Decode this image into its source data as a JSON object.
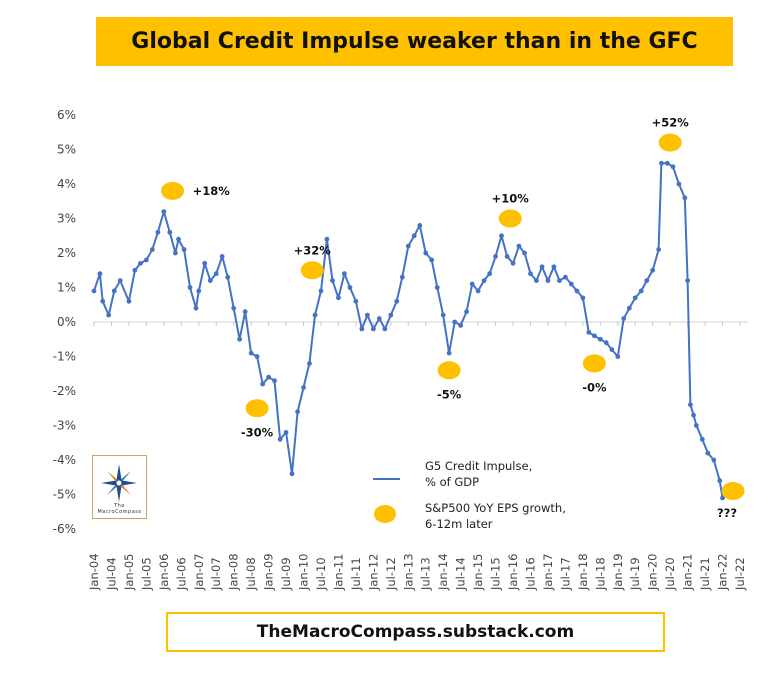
{
  "title": "Global Credit Impulse weaker than in the GFC",
  "footer": "TheMacroCompass.substack.com",
  "logo_text": "The MacroCompass",
  "colors": {
    "banner": "#ffc000",
    "line": "#4472c4",
    "marker": "#ffc000",
    "question": "#ff0000"
  },
  "chart_data": {
    "type": "line",
    "title": "Global Credit Impulse weaker than in the GFC",
    "xlabel": "",
    "ylabel": "",
    "ylim": [
      -6,
      6
    ],
    "xlim": [
      "2004-01",
      "2022-07"
    ],
    "y_ticks": [
      "6%",
      "5%",
      "4%",
      "3%",
      "2%",
      "1%",
      "0%",
      "-1%",
      "-2%",
      "-3%",
      "-4%",
      "-5%",
      "-6%"
    ],
    "y_tick_values": [
      6,
      5,
      4,
      3,
      2,
      1,
      0,
      -1,
      -2,
      -3,
      -4,
      -5,
      -6
    ],
    "x_ticks": [
      "Jan-04",
      "Jul-04",
      "Jan-05",
      "Jul-05",
      "Jan-06",
      "Jul-06",
      "Jan-07",
      "Jul-07",
      "Jan-08",
      "Jul-08",
      "Jan-09",
      "Jul-09",
      "Jan-10",
      "Jul-10",
      "Jan-11",
      "Jul-11",
      "Jan-12",
      "Jul-12",
      "Jan-13",
      "Jul-13",
      "Jan-14",
      "Jul-14",
      "Jan-15",
      "Jul-15",
      "Jan-16",
      "Jul-16",
      "Jan-17",
      "Jul-17",
      "Jan-18",
      "Jul-18",
      "Jan-19",
      "Jul-19",
      "Jan-20",
      "Jul-20",
      "Jan-21",
      "Jul-21",
      "Jan-22",
      "Jul-22"
    ],
    "grid": false,
    "legend_position": "bottom-right",
    "series": [
      {
        "name": "G5 Credit Impulse, % of GDP",
        "style": "line",
        "x": [
          2004.0,
          2004.17,
          2004.25,
          2004.42,
          2004.58,
          2004.75,
          2005.0,
          2005.17,
          2005.33,
          2005.5,
          2005.67,
          2005.83,
          2006.0,
          2006.17,
          2006.33,
          2006.42,
          2006.58,
          2006.75,
          2006.92,
          2007.0,
          2007.17,
          2007.33,
          2007.5,
          2007.67,
          2007.83,
          2008.0,
          2008.17,
          2008.33,
          2008.5,
          2008.67,
          2008.83,
          2009.0,
          2009.17,
          2009.33,
          2009.5,
          2009.67,
          2009.83,
          2010.0,
          2010.17,
          2010.33,
          2010.5,
          2010.67,
          2010.83,
          2011.0,
          2011.17,
          2011.33,
          2011.5,
          2011.67,
          2011.83,
          2012.0,
          2012.17,
          2012.33,
          2012.5,
          2012.67,
          2012.83,
          2013.0,
          2013.17,
          2013.33,
          2013.5,
          2013.67,
          2013.83,
          2014.0,
          2014.17,
          2014.33,
          2014.5,
          2014.67,
          2014.83,
          2015.0,
          2015.17,
          2015.33,
          2015.5,
          2015.67,
          2015.83,
          2016.0,
          2016.17,
          2016.33,
          2016.5,
          2016.67,
          2016.83,
          2017.0,
          2017.17,
          2017.33,
          2017.5,
          2017.67,
          2017.83,
          2018.0,
          2018.17,
          2018.33,
          2018.5,
          2018.67,
          2018.83,
          2019.0,
          2019.17,
          2019.33,
          2019.5,
          2019.67,
          2019.83,
          2020.0,
          2020.17,
          2020.25,
          2020.42,
          2020.58,
          2020.75,
          2020.92,
          2021.0,
          2021.08,
          2021.17,
          2021.25,
          2021.42,
          2021.58,
          2021.75,
          2021.92,
          2022.0
        ],
        "y": [
          0.9,
          1.4,
          0.6,
          0.2,
          0.9,
          1.2,
          0.6,
          1.5,
          1.7,
          1.8,
          2.1,
          2.6,
          3.2,
          2.6,
          2.0,
          2.4,
          2.1,
          1.0,
          0.4,
          0.9,
          1.7,
          1.2,
          1.4,
          1.9,
          1.3,
          0.4,
          -0.5,
          0.3,
          -0.9,
          -1.0,
          -1.8,
          -1.6,
          -1.7,
          -3.4,
          -3.2,
          -4.4,
          -2.6,
          -1.9,
          -1.2,
          0.2,
          0.9,
          2.4,
          1.2,
          0.7,
          1.4,
          1.0,
          0.6,
          -0.2,
          0.2,
          -0.2,
          0.1,
          -0.2,
          0.2,
          0.6,
          1.3,
          2.2,
          2.5,
          2.8,
          2.0,
          1.8,
          1.0,
          0.2,
          -0.9,
          0.0,
          -0.1,
          0.3,
          1.1,
          0.9,
          1.2,
          1.4,
          1.9,
          2.5,
          1.9,
          1.7,
          2.2,
          2.0,
          1.4,
          1.2,
          1.6,
          1.2,
          1.6,
          1.2,
          1.3,
          1.1,
          0.9,
          0.7,
          -0.3,
          -0.4,
          -0.5,
          -0.6,
          -0.8,
          -1.0,
          0.1,
          0.4,
          0.7,
          0.9,
          1.2,
          1.5,
          2.1,
          4.6,
          4.6,
          4.5,
          4.0,
          3.6,
          1.2,
          -2.4,
          -2.7,
          -3.0,
          -3.4,
          -3.8,
          -4.0,
          -4.6,
          -5.1
        ]
      },
      {
        "name": "S&P500 YoY EPS growth, 6-12m later",
        "style": "marker",
        "points": [
          {
            "x": 2006.25,
            "y": 3.8,
            "label": "+18%"
          },
          {
            "x": 2008.67,
            "y": -2.5,
            "label": "-30%"
          },
          {
            "x": 2010.25,
            "y": 1.5,
            "label": "+32%"
          },
          {
            "x": 2014.17,
            "y": -1.4,
            "label": "-5%"
          },
          {
            "x": 2015.92,
            "y": 3.0,
            "label": "+10%"
          },
          {
            "x": 2018.33,
            "y": -1.2,
            "label": "-0%"
          },
          {
            "x": 2020.5,
            "y": 5.2,
            "label": "+52%"
          },
          {
            "x": 2022.3,
            "y": -4.9,
            "label": "???"
          }
        ]
      }
    ]
  },
  "legend": [
    {
      "line1": "G5 Credit Impulse,",
      "line2": "% of GDP"
    },
    {
      "line1": "S&P500 YoY EPS growth,",
      "line2": "6-12m later"
    }
  ]
}
